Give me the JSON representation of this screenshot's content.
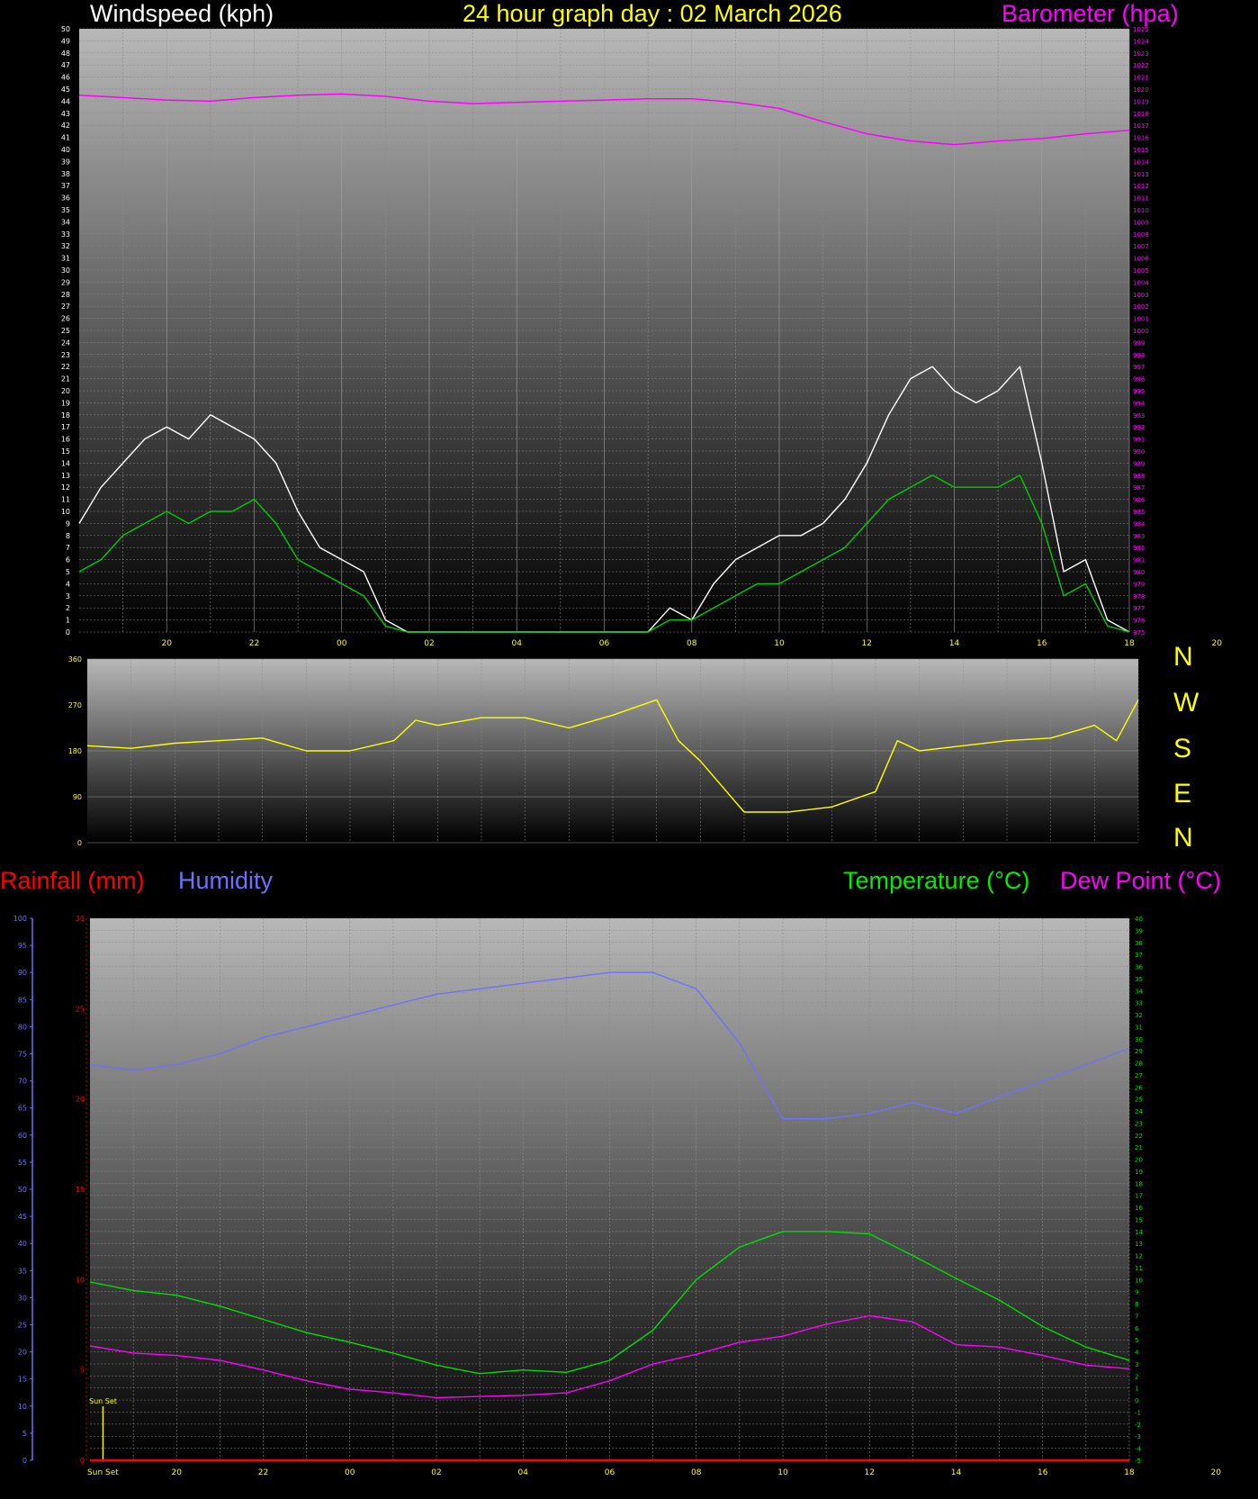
{
  "header": {
    "wind_label": "Windspeed (kph)",
    "day_label": "24 hour graph day : 02 March 2026",
    "baro_label": "Barometer (hpa)",
    "rain_label": "Rainfall (mm)",
    "humidity_label": "Humidity",
    "temp_label": "Temperature (°C)",
    "dew_label": "Dew Point (°C)"
  },
  "direction_letters": [
    "N",
    "W",
    "S",
    "E",
    "N"
  ],
  "sunset_label": "Sun Set",
  "colors": {
    "wind_gust": "#ffffff",
    "wind_avg": "#00cc00",
    "barometer": "#ff00ff",
    "direction": "#ffff00",
    "rain": "#ff0000",
    "humidity": "#7070ff",
    "temperature": "#00dd00",
    "dewpoint": "#ff00ff",
    "axis_ticks": "#ffff00"
  },
  "chart_data": [
    {
      "type": "line",
      "title": "Windspeed (kph) / Barometer (hpa)",
      "x_tick_labels": [
        "20",
        "22",
        "00",
        "02",
        "04",
        "06",
        "08",
        "10",
        "12",
        "14",
        "16",
        "18",
        "20",
        "22",
        "00"
      ],
      "x_range_hours": [
        18.0,
        42.0
      ],
      "ylim": [
        0,
        50
      ],
      "ylim_right": [
        975,
        1025
      ],
      "series": [
        {
          "name": "Gust",
          "axis": "left",
          "x": [
            18.0,
            18.5,
            19.0,
            19.5,
            20.0,
            20.5,
            21.0,
            21.5,
            22.0,
            22.5,
            23.0,
            23.5,
            24.0,
            24.5,
            25.0,
            25.5,
            26.0,
            27.0,
            28.0,
            29.0,
            30.0,
            31.0,
            31.5,
            32.0,
            32.5,
            33.0,
            33.5,
            34.0,
            34.5,
            35.0,
            35.5,
            36.0,
            36.5,
            37.0,
            37.5,
            38.0,
            38.5,
            39.0,
            39.5,
            40.0,
            40.5,
            41.0,
            41.5,
            42.0
          ],
          "values": [
            9,
            12,
            14,
            16,
            17,
            16,
            18,
            17,
            16,
            14,
            10,
            7,
            6,
            5,
            1,
            0,
            0,
            0,
            0,
            0,
            0,
            0,
            2,
            1,
            4,
            6,
            7,
            8,
            8,
            9,
            11,
            14,
            18,
            21,
            22,
            20,
            19,
            20,
            22,
            14,
            5,
            6,
            1,
            0
          ]
        },
        {
          "name": "Average",
          "axis": "left",
          "x": [
            18.0,
            18.5,
            19.0,
            19.5,
            20.0,
            20.5,
            21.0,
            21.5,
            22.0,
            22.5,
            23.0,
            23.5,
            24.0,
            24.5,
            25.0,
            25.5,
            26.0,
            27.0,
            28.0,
            29.0,
            30.0,
            31.0,
            31.5,
            32.0,
            32.5,
            33.0,
            33.5,
            34.0,
            34.5,
            35.0,
            35.5,
            36.0,
            36.5,
            37.0,
            37.5,
            38.0,
            38.5,
            39.0,
            39.5,
            40.0,
            40.5,
            41.0,
            41.5,
            42.0
          ],
          "values": [
            5,
            6,
            8,
            9,
            10,
            9,
            10,
            10,
            11,
            9,
            6,
            5,
            4,
            3,
            0.5,
            0,
            0,
            0,
            0,
            0,
            0,
            0,
            1,
            1,
            2,
            3,
            4,
            4,
            5,
            6,
            7,
            9,
            11,
            12,
            13,
            12,
            12,
            12,
            13,
            9,
            3,
            4,
            0.5,
            0
          ]
        },
        {
          "name": "Barometer",
          "axis": "right",
          "x": [
            18.0,
            19.0,
            20.0,
            21.0,
            22.0,
            23.0,
            24.0,
            25.0,
            26.0,
            27.0,
            28.0,
            29.0,
            30.0,
            31.0,
            32.0,
            33.0,
            34.0,
            35.0,
            36.0,
            37.0,
            38.0,
            39.0,
            40.0,
            41.0,
            42.0
          ],
          "values": [
            1019.5,
            1019.3,
            1019.1,
            1019.0,
            1019.3,
            1019.5,
            1019.6,
            1019.4,
            1019.0,
            1018.8,
            1018.9,
            1019.0,
            1019.1,
            1019.2,
            1019.2,
            1018.9,
            1018.4,
            1017.3,
            1016.3,
            1015.7,
            1015.4,
            1015.7,
            1015.9,
            1016.3,
            1016.6
          ]
        }
      ]
    },
    {
      "type": "line",
      "title": "Wind direction",
      "x_range_hours": [
        18.0,
        42.0
      ],
      "ylim": [
        0,
        360
      ],
      "y_tick_labels": [
        "0",
        "90",
        "180",
        "270",
        "360"
      ],
      "series": [
        {
          "name": "Direction",
          "x": [
            18.0,
            19.0,
            20.0,
            21.0,
            22.0,
            23.0,
            24.0,
            25.0,
            25.5,
            26.0,
            27.0,
            28.0,
            29.0,
            30.0,
            31.0,
            31.5,
            32.0,
            33.0,
            34.0,
            35.0,
            36.0,
            36.5,
            37.0,
            38.0,
            39.0,
            40.0,
            41.0,
            41.5,
            42.0
          ],
          "values": [
            190,
            185,
            195,
            200,
            205,
            180,
            180,
            200,
            240,
            230,
            245,
            245,
            225,
            250,
            280,
            200,
            160,
            60,
            60,
            70,
            100,
            200,
            180,
            190,
            200,
            205,
            230,
            200,
            280
          ]
        }
      ]
    },
    {
      "type": "line",
      "title": "Rainfall (mm) / Humidity / Temperature (°C) / Dew Point (°C)",
      "x_tick_labels": [
        "Sun Set",
        "20",
        "22",
        "00",
        "02",
        "04",
        "06",
        "08",
        "10",
        "12",
        "14",
        "16",
        "18",
        "20",
        "22",
        "00"
      ],
      "x_range_hours": [
        18.0,
        42.0
      ],
      "rain_ylim": [
        0,
        30
      ],
      "humidity_ylim": [
        0,
        100
      ],
      "temp_ylim": [
        -5,
        40
      ],
      "sunset_hours": [
        18.3,
        42.3
      ],
      "series": [
        {
          "name": "Rainfall",
          "axis": "rain",
          "x": [
            18.0,
            42.0
          ],
          "values": [
            0,
            0
          ]
        },
        {
          "name": "Humidity",
          "axis": "humidity",
          "x": [
            18.0,
            19.0,
            20.0,
            21.0,
            22.0,
            23.0,
            24.0,
            25.0,
            26.0,
            27.0,
            28.0,
            29.0,
            30.0,
            31.0,
            32.0,
            33.0,
            34.0,
            35.0,
            36.0,
            37.0,
            38.0,
            39.0,
            40.0,
            41.0,
            42.0
          ],
          "values": [
            73,
            72,
            73,
            75,
            78,
            80,
            82,
            84,
            86,
            87,
            88,
            89,
            90,
            90,
            87,
            77,
            63,
            63,
            64,
            66,
            64,
            67,
            70,
            73,
            76
          ]
        },
        {
          "name": "Temperature",
          "axis": "temp",
          "x": [
            18.0,
            19.0,
            20.0,
            21.0,
            22.0,
            23.0,
            24.0,
            25.0,
            26.0,
            27.0,
            28.0,
            29.0,
            30.0,
            31.0,
            32.0,
            33.0,
            34.0,
            35.0,
            36.0,
            37.0,
            38.0,
            39.0,
            40.0,
            41.0,
            42.0
          ],
          "values": [
            9.8,
            9.1,
            8.7,
            7.8,
            6.7,
            5.6,
            4.8,
            3.9,
            2.9,
            2.2,
            2.5,
            2.3,
            3.3,
            5.8,
            10.0,
            12.7,
            14.0,
            14.0,
            13.8,
            12.0,
            10.1,
            8.3,
            6.1,
            4.4,
            3.3
          ]
        },
        {
          "name": "Dew Point",
          "axis": "temp",
          "x": [
            18.0,
            19.0,
            20.0,
            21.0,
            22.0,
            23.0,
            24.0,
            25.0,
            26.0,
            27.0,
            28.0,
            29.0,
            30.0,
            31.0,
            32.0,
            33.0,
            34.0,
            35.0,
            36.0,
            37.0,
            38.0,
            39.0,
            40.0,
            41.0,
            42.0
          ],
          "values": [
            4.5,
            3.9,
            3.7,
            3.3,
            2.5,
            1.6,
            0.9,
            0.6,
            0.2,
            0.3,
            0.4,
            0.6,
            1.6,
            3.0,
            3.8,
            4.8,
            5.3,
            6.3,
            7.0,
            6.5,
            4.6,
            4.4,
            3.7,
            2.9,
            2.6
          ]
        }
      ]
    }
  ]
}
